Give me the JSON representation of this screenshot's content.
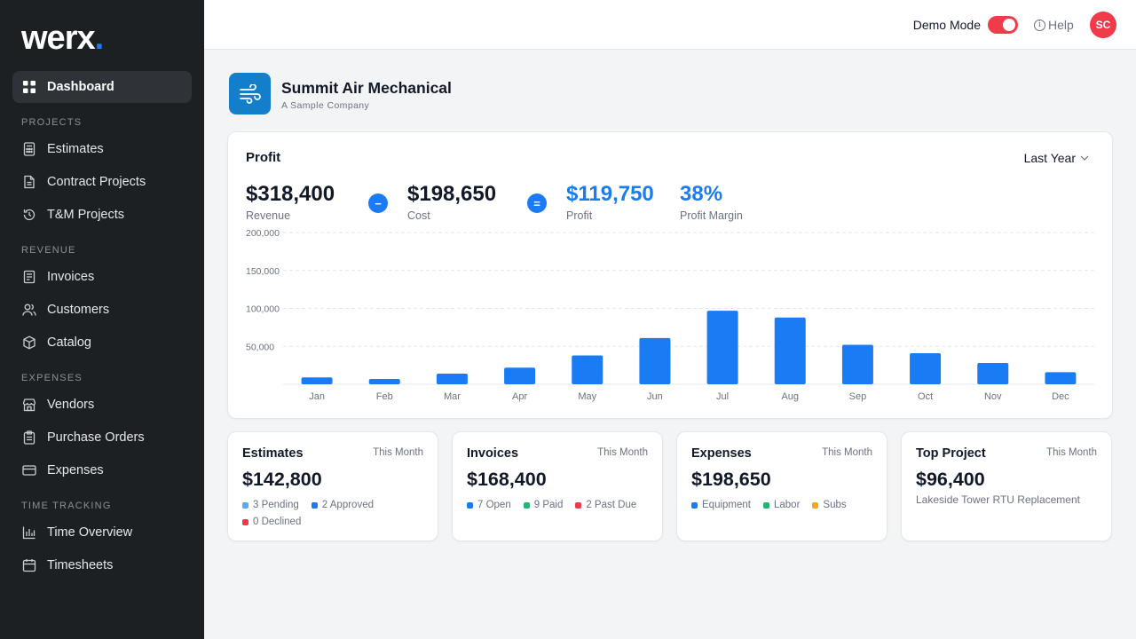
{
  "app": {
    "logo_text": "werx",
    "logo_dot": "."
  },
  "sidebar": {
    "dashboard": "Dashboard",
    "sections": {
      "projects": "PROJECTS",
      "revenue": "REVENUE",
      "expenses": "EXPENSES",
      "time_tracking": "TIME TRACKING"
    },
    "items": {
      "estimates": "Estimates",
      "contract_projects": "Contract Projects",
      "tm_projects": "T&M Projects",
      "invoices": "Invoices",
      "customers": "Customers",
      "catalog": "Catalog",
      "vendors": "Vendors",
      "purchase_orders": "Purchase Orders",
      "expenses": "Expenses",
      "time_overview": "Time Overview",
      "timesheets": "Timesheets"
    }
  },
  "topbar": {
    "demo_mode_label": "Demo Mode",
    "demo_mode_on": true,
    "help_label": "Help",
    "avatar_initials": "SC"
  },
  "company": {
    "name": "Summit Air Mechanical",
    "subtitle": "A Sample Company"
  },
  "profit": {
    "title": "Profit",
    "period": "Last Year",
    "revenue_value": "$318,400",
    "revenue_label": "Revenue",
    "minus_op": "−",
    "cost_value": "$198,650",
    "cost_label": "Cost",
    "equals_op": "=",
    "profit_value": "$119,750",
    "profit_label": "Profit",
    "margin_value": "38%",
    "margin_label": "Profit Margin"
  },
  "colors": {
    "accent": "#1a7cf5",
    "red": "#ef3b4a",
    "green": "#22b573",
    "amber": "#f5a623",
    "light_blue": "#5aa9f5"
  },
  "chart_data": {
    "type": "bar",
    "categories": [
      "Jan",
      "Feb",
      "Mar",
      "Apr",
      "May",
      "Jun",
      "Jul",
      "Aug",
      "Sep",
      "Oct",
      "Nov",
      "Dec"
    ],
    "values": [
      9000,
      7000,
      14000,
      22000,
      38000,
      61000,
      97000,
      88000,
      52000,
      41000,
      28000,
      16000
    ],
    "ylim": [
      0,
      200000
    ],
    "yticks": [
      "200,000",
      "150,000",
      "100,000",
      "50,000"
    ],
    "ytick_values": [
      200000,
      150000,
      100000,
      50000
    ],
    "grid": true,
    "bar_color": "#1a7cf5"
  },
  "cards": {
    "estimates": {
      "title": "Estimates",
      "period": "This Month",
      "value": "$142,800",
      "legend": [
        "3 Pending",
        "2 Approved",
        "0 Declined"
      ]
    },
    "invoices": {
      "title": "Invoices",
      "period": "This Month",
      "value": "$168,400",
      "legend": [
        "7 Open",
        "9 Paid",
        "2 Past Due"
      ]
    },
    "expenses": {
      "title": "Expenses",
      "period": "This Month",
      "value": "$198,650",
      "legend": [
        "Equipment",
        "Labor",
        "Subs"
      ]
    },
    "top_project": {
      "title": "Top Project",
      "period": "This Month",
      "value": "$96,400",
      "subtitle": "Lakeside Tower RTU Replacement"
    }
  }
}
